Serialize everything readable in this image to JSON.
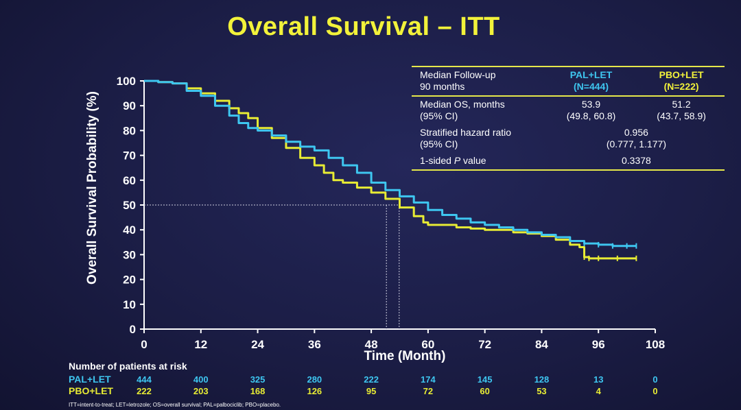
{
  "slide": {
    "title": "Overall Survival – ITT",
    "footnote": "ITT=intent-to-treat; LET=letrozole; OS=overall survival; PAL=palbociclib; PBO=placebo."
  },
  "colors": {
    "background": "#1b1d45",
    "title": "#f2f23a",
    "pal_let": "#3ec6f0",
    "pbo_let": "#e8ec34",
    "text": "#ffffff"
  },
  "stats_table": {
    "header": {
      "left_line1": "Median Follow-up",
      "left_line2": "90 months",
      "pal_line1": "PAL+LET",
      "pal_line2": "(N=444)",
      "pbo_line1": "PBO+LET",
      "pbo_line2": "(N=222)"
    },
    "rows": [
      {
        "label1": "Median OS, months",
        "label2": "(95% CI)",
        "pal1": "53.9",
        "pal2": "(49.8, 60.8)",
        "pbo1": "51.2",
        "pbo2": "(43.7, 58.9)"
      },
      {
        "label1": "Stratified hazard ratio",
        "label2": "(95% CI)",
        "value1": "0.956",
        "value2": "(0.777, 1.177)"
      },
      {
        "label_prefix": "1-sided ",
        "label_italic": "P",
        "label_suffix": " value",
        "value": "0.3378"
      }
    ]
  },
  "risk_table": {
    "title": "Number of patients at risk",
    "rows": [
      {
        "name": "PAL+LET",
        "values": [
          "444",
          "400",
          "325",
          "280",
          "222",
          "174",
          "145",
          "128",
          "13",
          "0"
        ]
      },
      {
        "name": "PBO+LET",
        "values": [
          "222",
          "203",
          "168",
          "126",
          "95",
          "72",
          "60",
          "53",
          "4",
          "0"
        ]
      }
    ]
  },
  "chart_data": {
    "type": "line",
    "title": "Overall Survival – ITT",
    "xlabel": "Time (Month)",
    "ylabel": "Overall Survival Probability (%)",
    "xlim": [
      0,
      108
    ],
    "ylim": [
      0,
      100
    ],
    "xticks": [
      0,
      12,
      24,
      36,
      48,
      60,
      72,
      84,
      96,
      108
    ],
    "yticks": [
      0,
      10,
      20,
      30,
      40,
      50,
      60,
      70,
      80,
      90,
      100
    ],
    "grid": false,
    "median_line_y": 50,
    "medians": [
      53.9,
      51.2
    ],
    "series": [
      {
        "name": "PAL+LET",
        "x": [
          0,
          3,
          6,
          9,
          12,
          15,
          18,
          20,
          22,
          24,
          27,
          30,
          33,
          36,
          39,
          42,
          45,
          48,
          51,
          54,
          57,
          60,
          63,
          66,
          69,
          72,
          75,
          78,
          81,
          84,
          87,
          90,
          93,
          96,
          99,
          102,
          104
        ],
        "y": [
          100,
          99.5,
          99,
          96,
          94,
          90,
          86,
          83,
          81,
          80,
          78,
          75.5,
          73.5,
          72,
          69,
          66,
          63,
          59,
          56,
          53.5,
          51,
          48,
          46,
          44.5,
          43,
          42,
          41,
          40,
          39,
          38,
          37,
          35.5,
          34.5,
          34,
          33.5,
          33.5,
          33.5
        ]
      },
      {
        "name": "PBO+LET",
        "x": [
          0,
          3,
          6,
          9,
          12,
          15,
          18,
          20,
          22,
          24,
          27,
          30,
          33,
          36,
          38,
          40,
          42,
          45,
          48,
          51,
          54,
          57,
          59,
          60,
          63,
          66,
          69,
          72,
          75,
          78,
          81,
          84,
          87,
          90,
          92,
          93,
          94,
          96,
          100,
          104
        ],
        "y": [
          100,
          99.5,
          99,
          97,
          95,
          92,
          89,
          87,
          85,
          81,
          77,
          73,
          69,
          66,
          63,
          60,
          59,
          57,
          55,
          52.5,
          49,
          45.5,
          43,
          42,
          42,
          41,
          40.5,
          40,
          40,
          39,
          38.5,
          37.5,
          36,
          34,
          33,
          29,
          28.5,
          28.5,
          28.5,
          28.5
        ]
      }
    ]
  }
}
